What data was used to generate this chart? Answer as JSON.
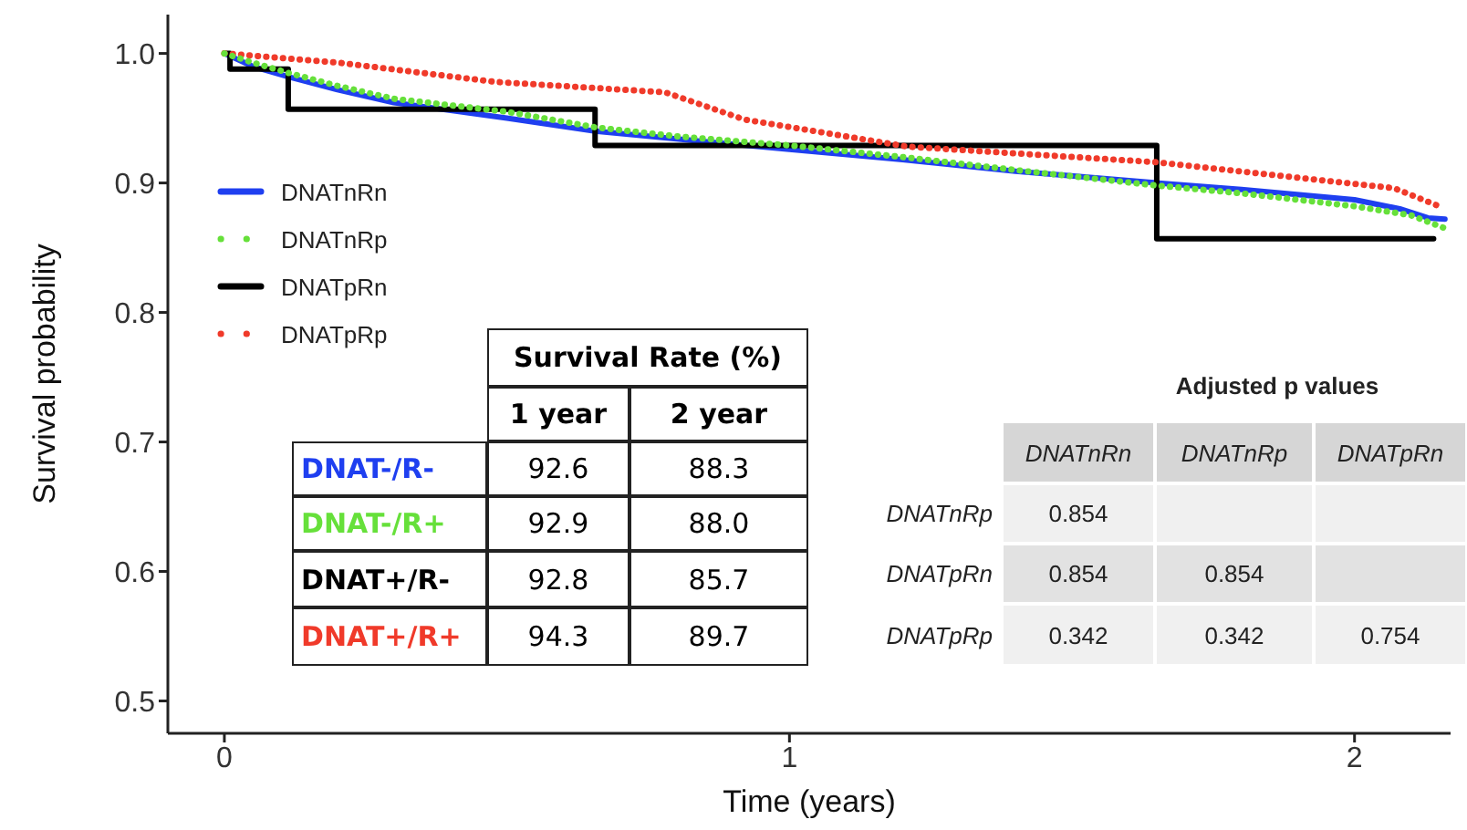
{
  "chart_data": {
    "type": "line",
    "xlabel": "Time (years)",
    "ylabel": "Survival probability",
    "xlim": [
      -0.1,
      2.17
    ],
    "xticks": [
      0,
      1,
      2
    ],
    "ylim": [
      0.475,
      1.03
    ],
    "yticks": [
      0.5,
      0.6,
      0.7,
      0.8,
      0.9,
      {
        "value": 1.0,
        "label": "1.0"
      }
    ],
    "grid": false,
    "legend": "left",
    "marker": "none",
    "series": [
      {
        "name": "DNATnRn",
        "color": "#1f3ff0",
        "line_style": "solid",
        "x": [
          0,
          0.05,
          0.113,
          0.2,
          0.3,
          0.5,
          0.656,
          0.8,
          1.0,
          1.2,
          1.4,
          1.65,
          1.8,
          2.0,
          2.08,
          2.13,
          2.16
        ],
        "values": [
          1.0,
          0.99,
          0.982,
          0.972,
          0.962,
          0.95,
          0.94,
          0.934,
          0.926,
          0.918,
          0.909,
          0.9,
          0.895,
          0.887,
          0.88,
          0.873,
          0.872
        ]
      },
      {
        "name": "DNATnRp",
        "color": "#66e03a",
        "line_style": "dotted",
        "x": [
          0,
          0.05,
          0.113,
          0.2,
          0.3,
          0.5,
          0.656,
          0.8,
          1.0,
          1.2,
          1.4,
          1.65,
          1.8,
          2.0,
          2.1,
          2.16
        ],
        "values": [
          1.0,
          0.993,
          0.985,
          0.975,
          0.965,
          0.955,
          0.943,
          0.936,
          0.929,
          0.92,
          0.91,
          0.898,
          0.892,
          0.882,
          0.875,
          0.865
        ]
      },
      {
        "name": "DNATpRn",
        "type": "step",
        "color": "#000000",
        "line_style": "solid",
        "x": [
          0,
          0.01,
          0.113,
          0.656,
          1.65,
          2.14
        ],
        "values": [
          1.0,
          0.988,
          0.957,
          0.929,
          0.857,
          0.857
        ]
      },
      {
        "name": "DNATpRp",
        "color": "#f03a2a",
        "line_style": "dotted",
        "x": [
          0,
          0.2,
          0.48,
          0.78,
          0.92,
          1.21,
          1.65,
          2.07,
          2.15
        ],
        "values": [
          1.0,
          0.993,
          0.978,
          0.97,
          0.949,
          0.928,
          0.916,
          0.896,
          0.882
        ]
      }
    ],
    "annotations": [
      "Survival Rate (%)",
      "1 year",
      "2 year",
      "DNAT-/R-",
      "92.6",
      "88.3",
      "DNAT-/R+",
      "92.9",
      "88.0",
      "DNAT+/R-",
      "92.8",
      "85.7",
      "DNAT+/R+",
      "94.3",
      "89.7",
      "Adjusted p values",
      "DNATnRn",
      "DNATnRp",
      "DNATpRn",
      "DNATnRp",
      "0.854",
      "DNATpRn",
      "0.854",
      "0.854",
      "DNATpRp",
      "0.342",
      "0.342",
      "0.754"
    ]
  }
}
